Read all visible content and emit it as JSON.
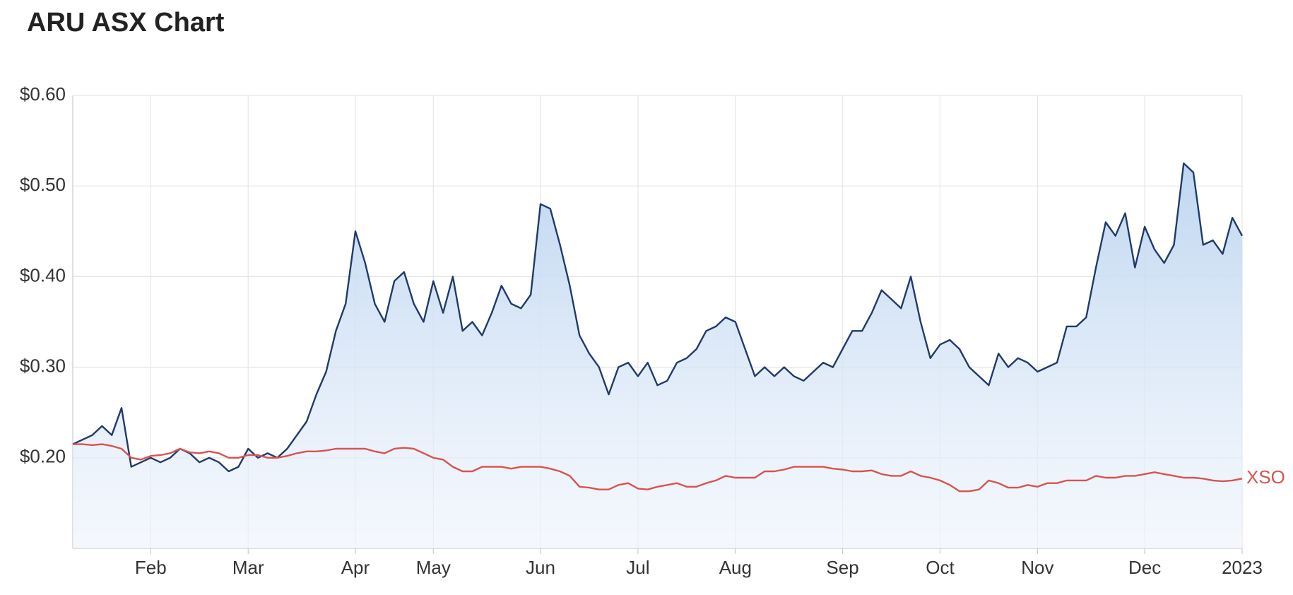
{
  "chart_data": {
    "type": "line",
    "title": "ARU ASX Chart",
    "ylim": [
      0.1,
      0.6
    ],
    "yticks": [
      {
        "value": 0.2,
        "label": "$0.20"
      },
      {
        "value": 0.3,
        "label": "$0.30"
      },
      {
        "value": 0.4,
        "label": "$0.40"
      },
      {
        "value": 0.5,
        "label": "$0.50"
      },
      {
        "value": 0.6,
        "label": "$0.60"
      }
    ],
    "xlim": [
      0,
      120
    ],
    "xticks": [
      {
        "value": 8,
        "label": "Feb"
      },
      {
        "value": 18,
        "label": "Mar"
      },
      {
        "value": 29,
        "label": "Apr"
      },
      {
        "value": 37,
        "label": "May"
      },
      {
        "value": 48,
        "label": "Jun"
      },
      {
        "value": 58,
        "label": "Jul"
      },
      {
        "value": 68,
        "label": "Aug"
      },
      {
        "value": 79,
        "label": "Sep"
      },
      {
        "value": 89,
        "label": "Oct"
      },
      {
        "value": 99,
        "label": "Nov"
      },
      {
        "value": 110,
        "label": "Dec"
      },
      {
        "value": 120,
        "label": "2023"
      }
    ],
    "grid": true,
    "series": [
      {
        "color": "#1f3a6b",
        "area": true,
        "values": [
          0.215,
          0.22,
          0.225,
          0.235,
          0.225,
          0.255,
          0.19,
          0.195,
          0.2,
          0.195,
          0.2,
          0.21,
          0.205,
          0.195,
          0.2,
          0.195,
          0.185,
          0.19,
          0.21,
          0.2,
          0.205,
          0.2,
          0.21,
          0.225,
          0.24,
          0.27,
          0.295,
          0.34,
          0.37,
          0.45,
          0.415,
          0.37,
          0.35,
          0.395,
          0.405,
          0.37,
          0.35,
          0.395,
          0.36,
          0.4,
          0.34,
          0.35,
          0.335,
          0.36,
          0.39,
          0.37,
          0.365,
          0.38,
          0.48,
          0.475,
          0.435,
          0.39,
          0.335,
          0.315,
          0.3,
          0.27,
          0.3,
          0.305,
          0.29,
          0.305,
          0.28,
          0.285,
          0.305,
          0.31,
          0.32,
          0.34,
          0.345,
          0.355,
          0.35,
          0.32,
          0.29,
          0.3,
          0.29,
          0.3,
          0.29,
          0.285,
          0.295,
          0.305,
          0.3,
          0.32,
          0.34,
          0.34,
          0.36,
          0.385,
          0.375,
          0.365,
          0.4,
          0.35,
          0.31,
          0.325,
          0.33,
          0.32,
          0.3,
          0.29,
          0.28,
          0.315,
          0.3,
          0.31,
          0.305,
          0.295,
          0.3,
          0.305,
          0.345,
          0.345,
          0.355,
          0.41,
          0.46,
          0.445,
          0.47,
          0.41,
          0.455,
          0.43,
          0.415,
          0.435,
          0.525,
          0.515,
          0.435,
          0.44,
          0.425,
          0.465,
          0.445
        ]
      },
      {
        "name": "XSO",
        "color": "#d9534f",
        "values": [
          0.215,
          0.215,
          0.214,
          0.215,
          0.213,
          0.21,
          0.2,
          0.198,
          0.202,
          0.203,
          0.205,
          0.21,
          0.206,
          0.205,
          0.207,
          0.205,
          0.2,
          0.2,
          0.203,
          0.203,
          0.2,
          0.2,
          0.202,
          0.205,
          0.207,
          0.207,
          0.208,
          0.21,
          0.21,
          0.21,
          0.21,
          0.207,
          0.205,
          0.21,
          0.211,
          0.21,
          0.205,
          0.2,
          0.198,
          0.19,
          0.185,
          0.185,
          0.19,
          0.19,
          0.19,
          0.188,
          0.19,
          0.19,
          0.19,
          0.188,
          0.185,
          0.18,
          0.168,
          0.167,
          0.165,
          0.165,
          0.17,
          0.172,
          0.166,
          0.165,
          0.168,
          0.17,
          0.172,
          0.168,
          0.168,
          0.172,
          0.175,
          0.18,
          0.178,
          0.178,
          0.178,
          0.185,
          0.185,
          0.187,
          0.19,
          0.19,
          0.19,
          0.19,
          0.188,
          0.187,
          0.185,
          0.185,
          0.186,
          0.182,
          0.18,
          0.18,
          0.185,
          0.18,
          0.178,
          0.175,
          0.17,
          0.163,
          0.163,
          0.165,
          0.175,
          0.172,
          0.167,
          0.167,
          0.17,
          0.168,
          0.172,
          0.172,
          0.175,
          0.175,
          0.175,
          0.18,
          0.178,
          0.178,
          0.18,
          0.18,
          0.182,
          0.184,
          0.182,
          0.18,
          0.178,
          0.178,
          0.177,
          0.175,
          0.174,
          0.175,
          0.177
        ]
      }
    ]
  }
}
